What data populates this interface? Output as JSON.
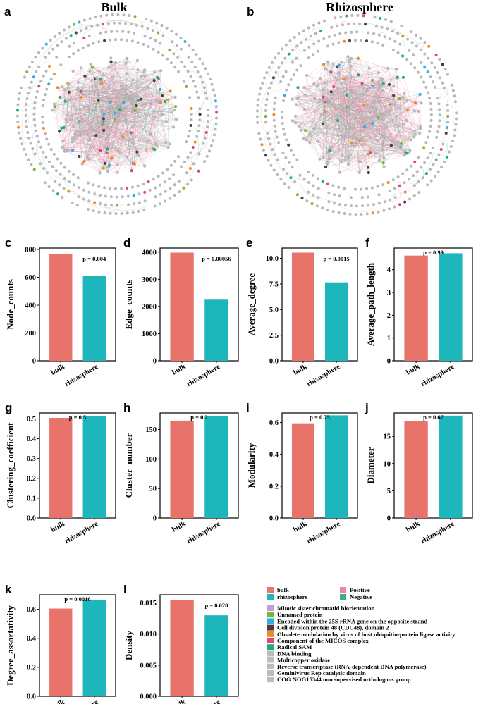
{
  "colors": {
    "bulk": "#E8736A",
    "rhizosphere": "#1DB7BB",
    "positive": "#E88AA6",
    "negative": "#3AAF86",
    "node_grey": "#B8B8B8"
  },
  "networks": [
    {
      "letter": "a",
      "title": "Bulk"
    },
    {
      "letter": "b",
      "title": "Rhizosphere"
    }
  ],
  "chart_data": [
    {
      "letter": "c",
      "type": "bar",
      "ylabel": "Node_counts",
      "categories": [
        "bulk",
        "rhizosphere"
      ],
      "values": [
        768,
        612
      ],
      "ylim": [
        0,
        810
      ],
      "ticks": [
        0,
        200,
        400,
        600,
        800
      ],
      "tick_labels": [
        "0",
        "200",
        "400",
        "600",
        "800"
      ],
      "p_label": "p = 0.004"
    },
    {
      "letter": "d",
      "type": "bar",
      "ylabel": "Edge_counts",
      "categories": [
        "bulk",
        "rhizosphere"
      ],
      "values": [
        3980,
        2250
      ],
      "ylim": [
        0,
        4150
      ],
      "ticks": [
        0,
        1000,
        2000,
        3000,
        4000
      ],
      "tick_labels": [
        "0",
        "1000",
        "2000",
        "3000",
        "4000"
      ],
      "p_label": "p = 0.00056"
    },
    {
      "letter": "e",
      "type": "bar",
      "ylabel": "Average_degree",
      "categories": [
        "bulk",
        "rhizosphere"
      ],
      "values": [
        10.55,
        7.65
      ],
      "ylim": [
        0,
        11.0
      ],
      "ticks": [
        0,
        2.5,
        5.0,
        7.5,
        10.0
      ],
      "tick_labels": [
        "0.0",
        "2.5",
        "5.0",
        "7.5",
        "10.0"
      ],
      "p_label": "p = 0.0015"
    },
    {
      "letter": "f",
      "type": "bar",
      "ylabel": "Average_path_length",
      "categories": [
        "bulk",
        "rhizosphere"
      ],
      "values": [
        4.62,
        4.72
      ],
      "ylim": [
        0,
        4.95
      ],
      "ticks": [
        0,
        1,
        2,
        3,
        4
      ],
      "tick_labels": [
        "0",
        "1",
        "2",
        "3",
        "4"
      ],
      "p_label": "p = 0.99"
    },
    {
      "letter": "g",
      "type": "bar",
      "ylabel": "Clustering_coefficient",
      "categories": [
        "bulk",
        "rhizosphere"
      ],
      "values": [
        0.505,
        0.515
      ],
      "ylim": [
        0,
        0.53
      ],
      "ticks": [
        0,
        0.1,
        0.2,
        0.3,
        0.4,
        0.5
      ],
      "tick_labels": [
        "0.0",
        "0.1",
        "0.2",
        "0.3",
        "0.4",
        "0.5"
      ],
      "p_label": "p = 0.5"
    },
    {
      "letter": "h",
      "type": "bar",
      "ylabel": "Cluster_number",
      "categories": [
        "bulk",
        "rhizosphere"
      ],
      "values": [
        165,
        172
      ],
      "ylim": [
        0,
        178
      ],
      "ticks": [
        0,
        50,
        100,
        150
      ],
      "tick_labels": [
        "0",
        "50",
        "100",
        "150"
      ],
      "p_label": "p = 0.2"
    },
    {
      "letter": "i",
      "type": "bar",
      "ylabel": "Modularity",
      "categories": [
        "bulk",
        "rhizosphere"
      ],
      "values": [
        0.595,
        0.645
      ],
      "ylim": [
        0,
        0.66
      ],
      "ticks": [
        0,
        0.2,
        0.4,
        0.6
      ],
      "tick_labels": [
        "0.0",
        "0.2",
        "0.4",
        "0.6"
      ],
      "p_label": "p = 0.75"
    },
    {
      "letter": "j",
      "type": "bar",
      "ylabel": "Diameter",
      "categories": [
        "bulk",
        "rhizosphere"
      ],
      "values": [
        17.8,
        18.8
      ],
      "ylim": [
        0,
        19.3
      ],
      "ticks": [
        0,
        5,
        10,
        15
      ],
      "tick_labels": [
        "0",
        "5",
        "10",
        "15"
      ],
      "p_label": "p = 0.67"
    },
    {
      "letter": "k",
      "type": "bar",
      "ylabel": "Degree_assortativity",
      "categories": [
        "bulk",
        "rhizosphere"
      ],
      "values": [
        0.605,
        0.665
      ],
      "ylim": [
        0,
        0.7
      ],
      "ticks": [
        0,
        0.2,
        0.4,
        0.6
      ],
      "tick_labels": [
        "0.0",
        "0.2",
        "0.4",
        "0.6"
      ],
      "p_label": "p = 0.0016"
    },
    {
      "letter": "l",
      "type": "bar",
      "ylabel": "Density",
      "categories": [
        "bulk",
        "rhizosphere"
      ],
      "values": [
        0.0155,
        0.013
      ],
      "ylim": [
        0,
        0.0163
      ],
      "ticks": [
        0,
        0.005,
        0.01,
        0.015
      ],
      "tick_labels": [
        "0.000",
        "0.005",
        "0.010",
        "0.015"
      ],
      "p_label": "p = 0.028"
    }
  ],
  "legend": {
    "groups": [
      {
        "label": "bulk",
        "color": "#E8736A"
      },
      {
        "label": "rhizosphere",
        "color": "#1DB7BB"
      }
    ],
    "edges": [
      {
        "label": "Positive",
        "color": "#E88AA6"
      },
      {
        "label": "Negative",
        "color": "#3AAF86"
      }
    ],
    "modules": [
      {
        "label": "Mitotic sister chromatid biorientation",
        "color": "#C79BD3"
      },
      {
        "label": "Unnamed protein",
        "color": "#74B83E"
      },
      {
        "label": "Encoded within the 25S rRNA gene on the opposite strand",
        "color": "#2FAFE3"
      },
      {
        "label": "Cell division protein 48 (CDC48), domain 2",
        "color": "#4A3F3D"
      },
      {
        "label": "Obsolete modulation by virus of host ubiquitin-protein ligase activity",
        "color": "#F08A24"
      },
      {
        "label": "Component of the MICOS complex",
        "color": "#E0457B"
      },
      {
        "label": "Radical SAM",
        "color": "#23A97E"
      },
      {
        "label": "DNA binding",
        "color": "#BDBDBD"
      },
      {
        "label": "Multicopper oxidase",
        "color": "#BDBDBD"
      },
      {
        "label": "Reverse transcriptase (RNA-dependent DNA polymerase)",
        "color": "#BDBDBD"
      },
      {
        "label": "Geminivirus Rep catalytic domain",
        "color": "#BDBDBD"
      },
      {
        "label": "COG NOG15344 non supervised orthologous group",
        "color": "#BDBDBD"
      }
    ]
  }
}
